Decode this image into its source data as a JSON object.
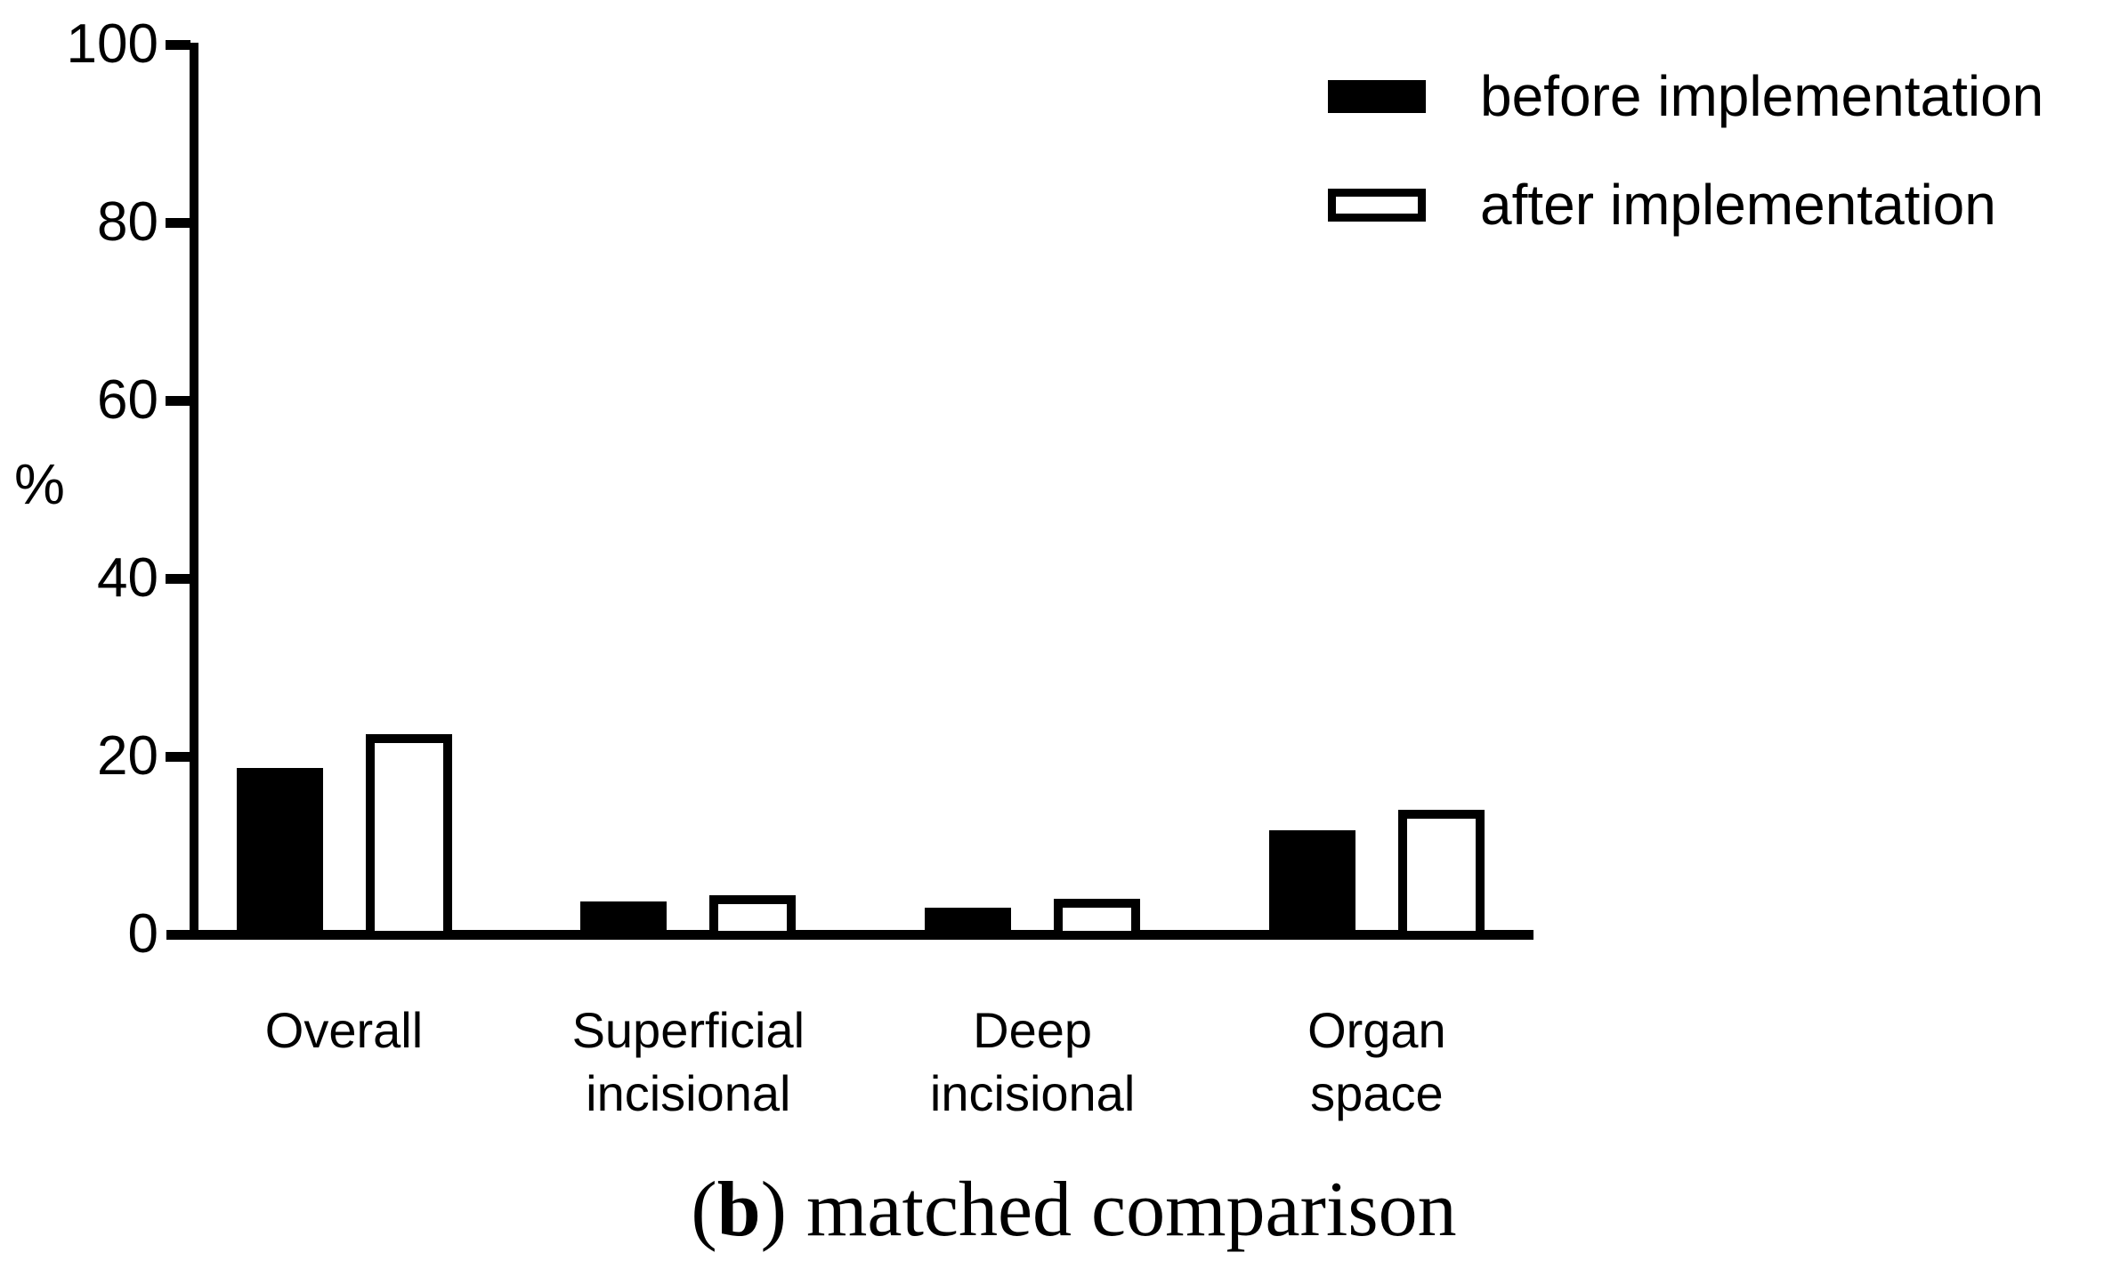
{
  "figure": {
    "ylabel": "%",
    "caption": {
      "pre": "(",
      "bold": "b",
      "post": ") matched comparison"
    }
  },
  "legend": {
    "items": [
      {
        "label": "before implementation",
        "swatch": "filled-black"
      },
      {
        "label": "after implementation",
        "swatch": "white-outlined"
      }
    ]
  },
  "chart_data": {
    "type": "bar",
    "title": "",
    "xlabel": "",
    "ylabel": "%",
    "ylim": [
      0,
      100
    ],
    "yticks": [
      0,
      20,
      40,
      60,
      80,
      100
    ],
    "grid": false,
    "legend_position": "top-right",
    "caption": "(b) matched comparison",
    "categories": [
      "Overall",
      "Superficial incisional",
      "Deep incisional",
      "Organ space"
    ],
    "category_label_lines": [
      [
        "Overall"
      ],
      [
        "Superficial",
        "incisional"
      ],
      [
        "Deep",
        "incisional"
      ],
      [
        "Organ",
        "space"
      ]
    ],
    "series": [
      {
        "name": "before implementation",
        "style": "solid-black-fill",
        "values": [
          18.7,
          3.7,
          3.0,
          11.7
        ]
      },
      {
        "name": "after implementation",
        "style": "white-fill-black-outline",
        "values": [
          22.5,
          4.4,
          4.0,
          14.0
        ]
      }
    ],
    "colors": {
      "bar_fill": "#000000",
      "bar_outline": "#000000",
      "background": "#ffffff",
      "text": "#000000"
    }
  }
}
